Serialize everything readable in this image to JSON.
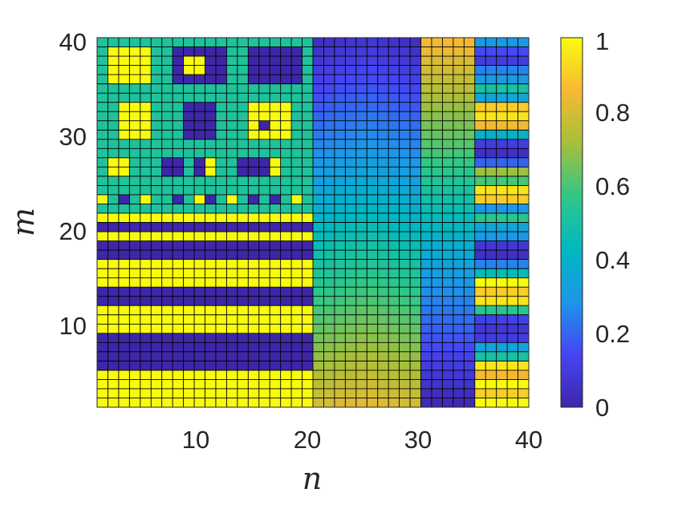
{
  "chart_data": {
    "type": "heatmap",
    "title": "",
    "xlabel": "n",
    "ylabel": "m",
    "xlim": [
      1,
      40
    ],
    "ylim": [
      1,
      40
    ],
    "x_ticks": [
      "10",
      "20",
      "30",
      "40"
    ],
    "y_ticks": [
      "10",
      "20",
      "30",
      "40"
    ],
    "colorbar": {
      "range": [
        0,
        1
      ],
      "ticks": [
        "0",
        "0.2",
        "0.4",
        "0.6",
        "0.8",
        "1"
      ],
      "colormap": [
        "#3e26a8",
        "#4545f5",
        "#1e96e9",
        "#00b8bf",
        "#31c786",
        "#a6bf3a",
        "#f8b934",
        "#f9fb0e"
      ]
    },
    "grid_lines": true,
    "regions": [
      {
        "n_range": [
          1,
          20
        ],
        "m_range": [
          22,
          40
        ],
        "description": "value 0.5 background with blocks of 1 and 0 (values 0 and 1)"
      },
      {
        "n_range": [
          1,
          20
        ],
        "m_range": [
          1,
          21
        ],
        "description": "horizontal bands alternating 1 and 0"
      },
      {
        "n_range": [
          21,
          30
        ],
        "m_range": [
          1,
          40
        ],
        "description": "smooth gradient from about 0.82 at bottom to about 0.08 at top"
      },
      {
        "n_range": [
          31,
          35
        ],
        "m_range": [
          1,
          40
        ],
        "description": "smooth gradient from about 0.02 at bottom to about 0.85 at top"
      },
      {
        "n_range": [
          36,
          40
        ],
        "m_range": [
          1,
          40
        ],
        "description": "horizontal stripes with mixed values"
      }
    ]
  }
}
